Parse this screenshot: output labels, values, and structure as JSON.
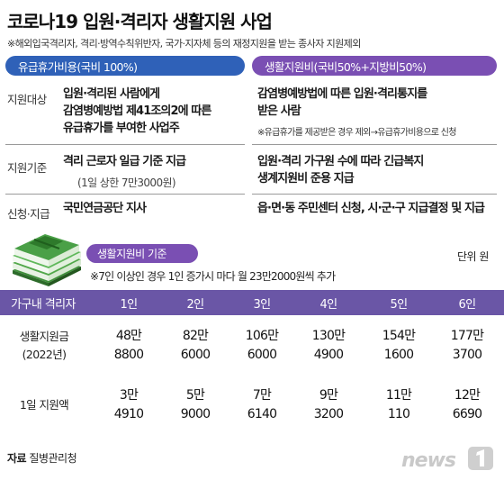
{
  "header": {
    "title": "코로나19 입원·격리자 생활지원 사업",
    "subtitle": "※해외입국격리자, 격리·방역수칙위반자, 국가·지자체 등의 재정지원을 받는 종사자 지원제외"
  },
  "left_panel": {
    "title": "유급휴가비용(국비 100%)",
    "color": "#2f61b8",
    "rows": [
      {
        "label": "지원대상",
        "lines": [
          "입원·격리된 사람에게",
          "감염병예방법 제41조의2에 따른",
          "유급휴가를 부여한 사업주"
        ]
      },
      {
        "label": "지원기준",
        "lines": [
          "격리 근로자 일급 기준 지급"
        ],
        "sub": "(1일 상한 7만3000원)"
      },
      {
        "label": "신청·지급",
        "lines": [
          "국민연금공단 지사"
        ]
      }
    ]
  },
  "right_panel": {
    "title": "생활지원비(국비50%+지방비50%)",
    "color": "#7a4fb3",
    "rows": [
      {
        "lines": [
          "감염병예방법에 따른 입원·격리통지를",
          "받은 사람"
        ],
        "note": "※유급휴가를 제공받은 경우 제외→유급휴가비용으로 신청"
      },
      {
        "lines": [
          "입원·격리 가구원 수에 따라 긴급복지",
          "생계지원비 준용 지급"
        ]
      },
      {
        "lines": [
          "읍·면·동 주민센터 신청, 시·군·구 지급결정 및 지급"
        ]
      }
    ]
  },
  "support": {
    "badge": "생활지원비 기준",
    "note": "※7인 이상인 경우 1인 증가시 마다 월 23만2000원씩 추가",
    "unit": "단위 원"
  },
  "table": {
    "header_label": "가구내 격리자",
    "header_color": "#6a56a6",
    "columns": [
      "1인",
      "2인",
      "3인",
      "4인",
      "5인",
      "6인"
    ],
    "rows": [
      {
        "label_lines": [
          "생활지원금",
          "(2022년)"
        ],
        "values": [
          [
            "48만",
            "8800"
          ],
          [
            "82만",
            "6000"
          ],
          [
            "106만",
            "6000"
          ],
          [
            "130만",
            "4900"
          ],
          [
            "154만",
            "1600"
          ],
          [
            "177만",
            "3700"
          ]
        ]
      },
      {
        "label_lines": [
          "1일 지원액"
        ],
        "values": [
          [
            "3만",
            "4910"
          ],
          [
            "5만",
            "9000"
          ],
          [
            "7만",
            "6140"
          ],
          [
            "9만",
            "3200"
          ],
          [
            "11만",
            "110"
          ],
          [
            "12만",
            "6690"
          ]
        ]
      }
    ]
  },
  "footer": {
    "source_label": "자료",
    "source": "질병관리청",
    "logo_text": "news"
  },
  "icons": {
    "money_stack": "money-stack-icon",
    "logo": "news1-logo"
  }
}
